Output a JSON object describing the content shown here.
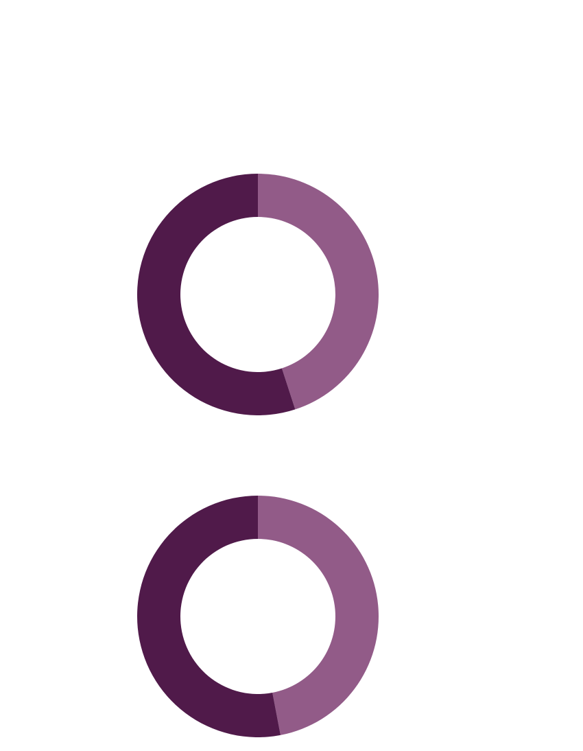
{
  "chart_data": [
    {
      "type": "pie",
      "variant": "donut",
      "title": "",
      "slices": [
        {
          "value": 45,
          "color": "#925b88"
        },
        {
          "value": 55,
          "color": "#501a4a"
        }
      ]
    },
    {
      "type": "pie",
      "variant": "donut",
      "title": "",
      "slices": [
        {
          "value": 47,
          "color": "#925b88"
        },
        {
          "value": 53,
          "color": "#501a4a"
        }
      ]
    }
  ],
  "colors": {
    "background": "#ffffff",
    "accent_light": "#925b88",
    "accent_dark": "#501a4a"
  }
}
